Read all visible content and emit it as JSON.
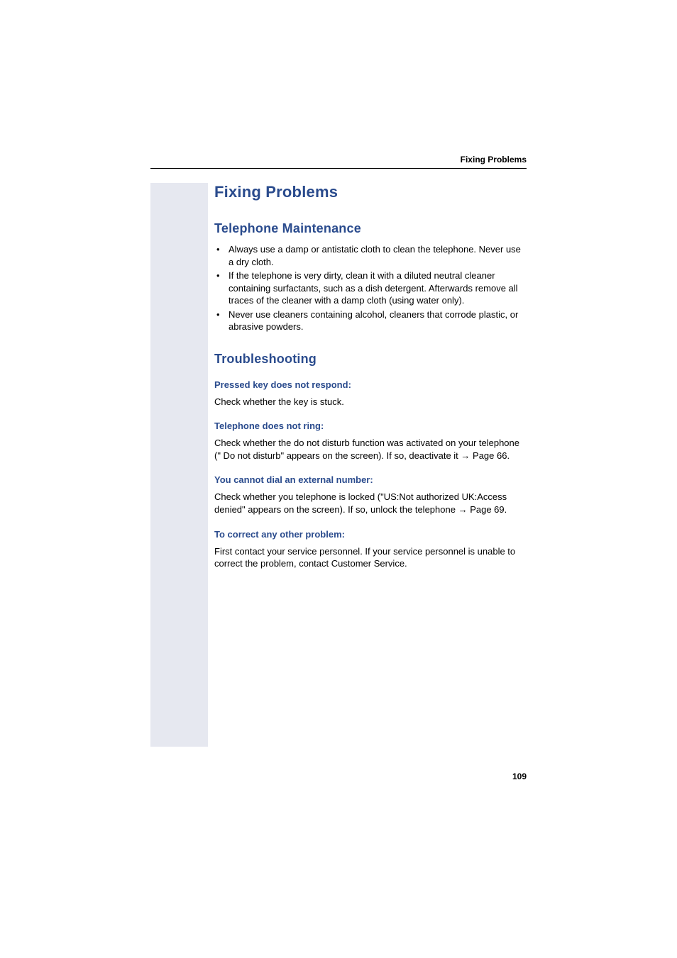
{
  "header": {
    "running_title": "Fixing Problems"
  },
  "main": {
    "title": "Fixing Problems",
    "section_maintenance": {
      "title": "Telephone Maintenance",
      "bullets": [
        "Always use a damp or antistatic cloth to clean the telephone. Never use a dry cloth.",
        "If the telephone is very dirty, clean it with a diluted neutral cleaner containing surfactants, such as a dish detergent. Afterwards remove all traces of the cleaner with a damp cloth (using water only).",
        "Never use cleaners containing alcohol, cleaners that corrode plastic, or abrasive powders."
      ]
    },
    "section_troubleshooting": {
      "title": "Troubleshooting",
      "items": [
        {
          "heading": "Pressed key does not respond:",
          "body": "Check whether the key is stuck."
        },
        {
          "heading": "Telephone does not ring:",
          "body_pre": "Check whether the do not disturb function was activated on your telephone (\" Do not disturb\" appears on the screen). If so, deactivate it ",
          "arrow": "→",
          "page_ref": " Page 66."
        },
        {
          "heading": "You cannot dial an external number:",
          "body_pre": "Check whether you telephone is locked (\"US:Not authorized UK:Access denied\" appears on the screen). If so, unlock the telephone ",
          "arrow": "→",
          "page_ref": " Page 69."
        },
        {
          "heading": "To correct any other problem:",
          "body": "First contact your service personnel. If your service personnel is unable to correct the problem, contact Customer Service."
        }
      ]
    }
  },
  "footer": {
    "page_number": "109"
  },
  "colors": {
    "heading_blue": "#2a4b8d",
    "left_bar": "#e6e8f0",
    "text": "#000000",
    "background": "#ffffff"
  }
}
